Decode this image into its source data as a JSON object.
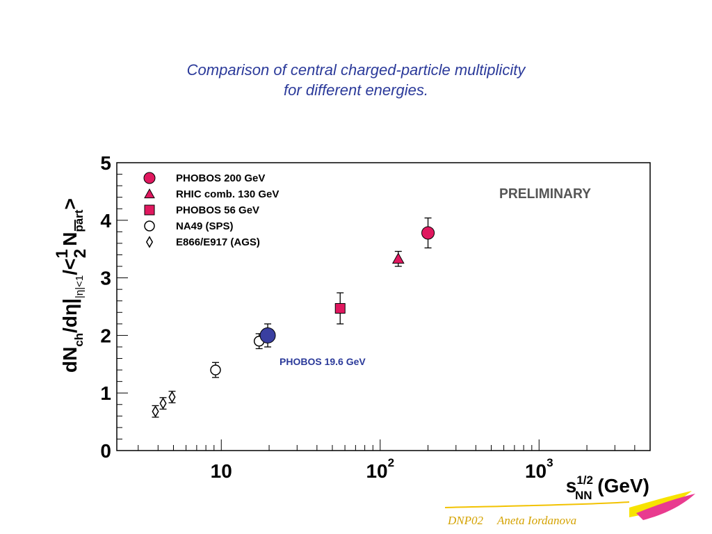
{
  "slide": {
    "title_line1": "Comparison of central charged-particle multiplicity",
    "title_line2": "for different energies.",
    "footer_left": "DNP02",
    "footer_right": "Aneta Iordanova"
  },
  "chart_data": {
    "type": "scatter",
    "x_scale": "log",
    "xlim": [
      2.2,
      5000
    ],
    "ylim": [
      0,
      5
    ],
    "x_ticks": [
      {
        "value": 10,
        "base": "10",
        "exp": ""
      },
      {
        "value": 100,
        "base": "10",
        "exp": "2"
      },
      {
        "value": 1000,
        "base": "10",
        "exp": "3"
      }
    ],
    "y_ticks": [
      "0",
      "1",
      "2",
      "3",
      "4",
      "5"
    ],
    "xlabel": {
      "base": "s",
      "sup": "1/2",
      "sub": "NN",
      "suffix": "(GeV)"
    },
    "ylabel": {
      "p1": "dN",
      "p1_sub": "ch",
      "p2": "/dη|",
      "p2_sub": "|η|<1",
      "p3": "/<",
      "frac_num": "1",
      "frac_den": "2",
      "p4": "N",
      "p4_sub": "part",
      "p5": ">"
    },
    "watermark": "PRELIMINARY",
    "grid": false,
    "legend_position": "top-left",
    "series": [
      {
        "name": "PHOBOS 200 GeV",
        "marker": "circle-filled",
        "color": "#e0185f",
        "points": [
          {
            "x": 200,
            "y": 3.78,
            "err": 0.26
          }
        ]
      },
      {
        "name": "RHIC comb. 130 GeV",
        "marker": "triangle-filled",
        "color": "#e0185f",
        "points": [
          {
            "x": 130,
            "y": 3.33,
            "err": 0.13
          }
        ]
      },
      {
        "name": "PHOBOS 56 GeV",
        "marker": "square-filled",
        "color": "#e0185f",
        "points": [
          {
            "x": 56,
            "y": 2.47,
            "err": 0.27
          }
        ]
      },
      {
        "name": "NA49 (SPS)",
        "marker": "circle-open",
        "color": "#000000",
        "points": [
          {
            "x": 9.2,
            "y": 1.4,
            "err": 0.13
          },
          {
            "x": 17.3,
            "y": 1.9,
            "err": 0.13
          }
        ]
      },
      {
        "name": "E866/E917 (AGS)",
        "marker": "diamond-open",
        "color": "#000000",
        "points": [
          {
            "x": 3.85,
            "y": 0.68,
            "err": 0.1
          },
          {
            "x": 4.3,
            "y": 0.82,
            "err": 0.1
          },
          {
            "x": 4.9,
            "y": 0.93,
            "err": 0.1
          }
        ]
      }
    ],
    "highlight": {
      "name": "PHOBOS 19.6 GeV",
      "marker": "circle-filled",
      "color": "#3a3fa0",
      "points": [
        {
          "x": 19.6,
          "y": 2.0,
          "err": 0.2
        }
      ]
    }
  }
}
